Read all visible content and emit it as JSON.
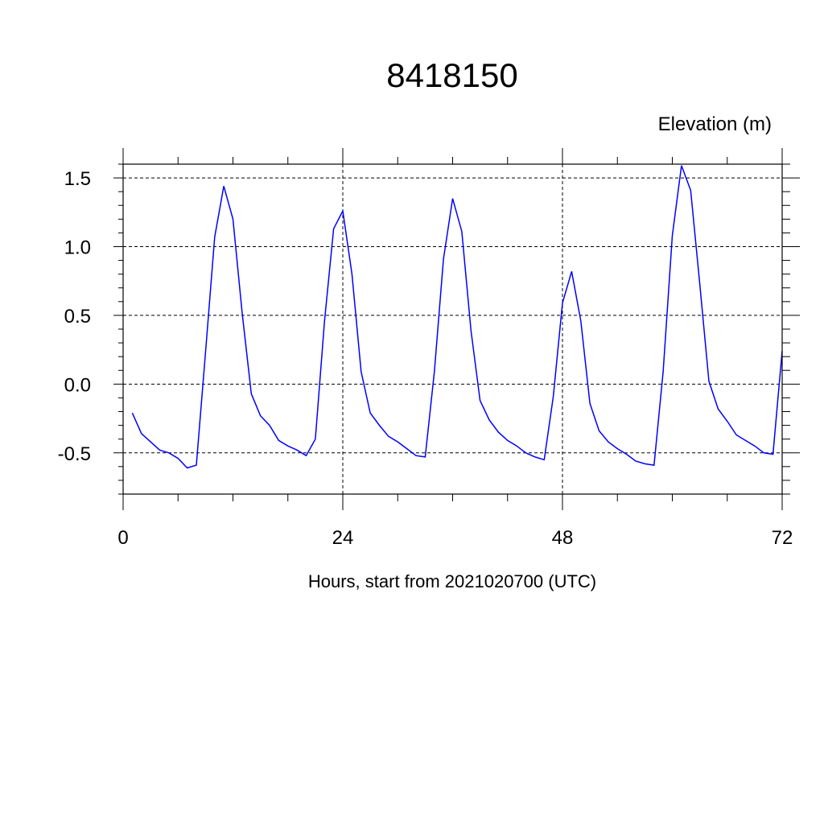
{
  "chart_data": {
    "type": "line",
    "title": "8418150",
    "ylabel": "Elevation (m)",
    "xlabel": "Hours, start from 2021020700 (UTC)",
    "xlim": [
      0,
      72
    ],
    "ylim": [
      -0.8,
      1.6
    ],
    "x_ticks": [
      0,
      24,
      48,
      72
    ],
    "x_tick_labels": [
      "0",
      "24",
      "48",
      "72"
    ],
    "y_ticks": [
      -0.5,
      0.0,
      0.5,
      1.0,
      1.5
    ],
    "y_tick_labels": [
      "-0.5",
      "0.0",
      "0.5",
      "1.0",
      "1.5"
    ],
    "grid": true,
    "series": [
      {
        "color": "#0000ff",
        "x": [
          1,
          2,
          3,
          4,
          5,
          6,
          7,
          8,
          9,
          10,
          11,
          12,
          13,
          14,
          15,
          16,
          17,
          18,
          19,
          20,
          21,
          22,
          23,
          24,
          25,
          26,
          27,
          28,
          29,
          30,
          31,
          32,
          33,
          34,
          35,
          36,
          37,
          38,
          39,
          40,
          41,
          42,
          43,
          44,
          45,
          46,
          47,
          48,
          49,
          50,
          51,
          52,
          53,
          54,
          55,
          56,
          57,
          58,
          59,
          60,
          61,
          62,
          63,
          64,
          65,
          66,
          67,
          68,
          69,
          70,
          71,
          72
        ],
        "values": [
          -0.21,
          -0.36,
          -0.42,
          -0.48,
          -0.5,
          -0.54,
          -0.61,
          -0.59,
          0.23,
          1.07,
          1.44,
          1.2,
          0.52,
          -0.07,
          -0.23,
          -0.3,
          -0.41,
          -0.45,
          -0.48,
          -0.52,
          -0.4,
          0.46,
          1.13,
          1.26,
          0.8,
          0.09,
          -0.21,
          -0.3,
          -0.38,
          -0.42,
          -0.47,
          -0.52,
          -0.53,
          0.09,
          0.91,
          1.35,
          1.11,
          0.39,
          -0.12,
          -0.26,
          -0.35,
          -0.41,
          -0.45,
          -0.5,
          -0.53,
          -0.55,
          -0.09,
          0.59,
          0.82,
          0.46,
          -0.14,
          -0.34,
          -0.42,
          -0.47,
          -0.51,
          -0.56,
          -0.58,
          -0.59,
          0.09,
          1.08,
          1.59,
          1.41,
          0.73,
          0.02,
          -0.18,
          -0.27,
          -0.37,
          -0.41,
          -0.45,
          -0.5,
          -0.51,
          0.24
        ]
      }
    ]
  }
}
